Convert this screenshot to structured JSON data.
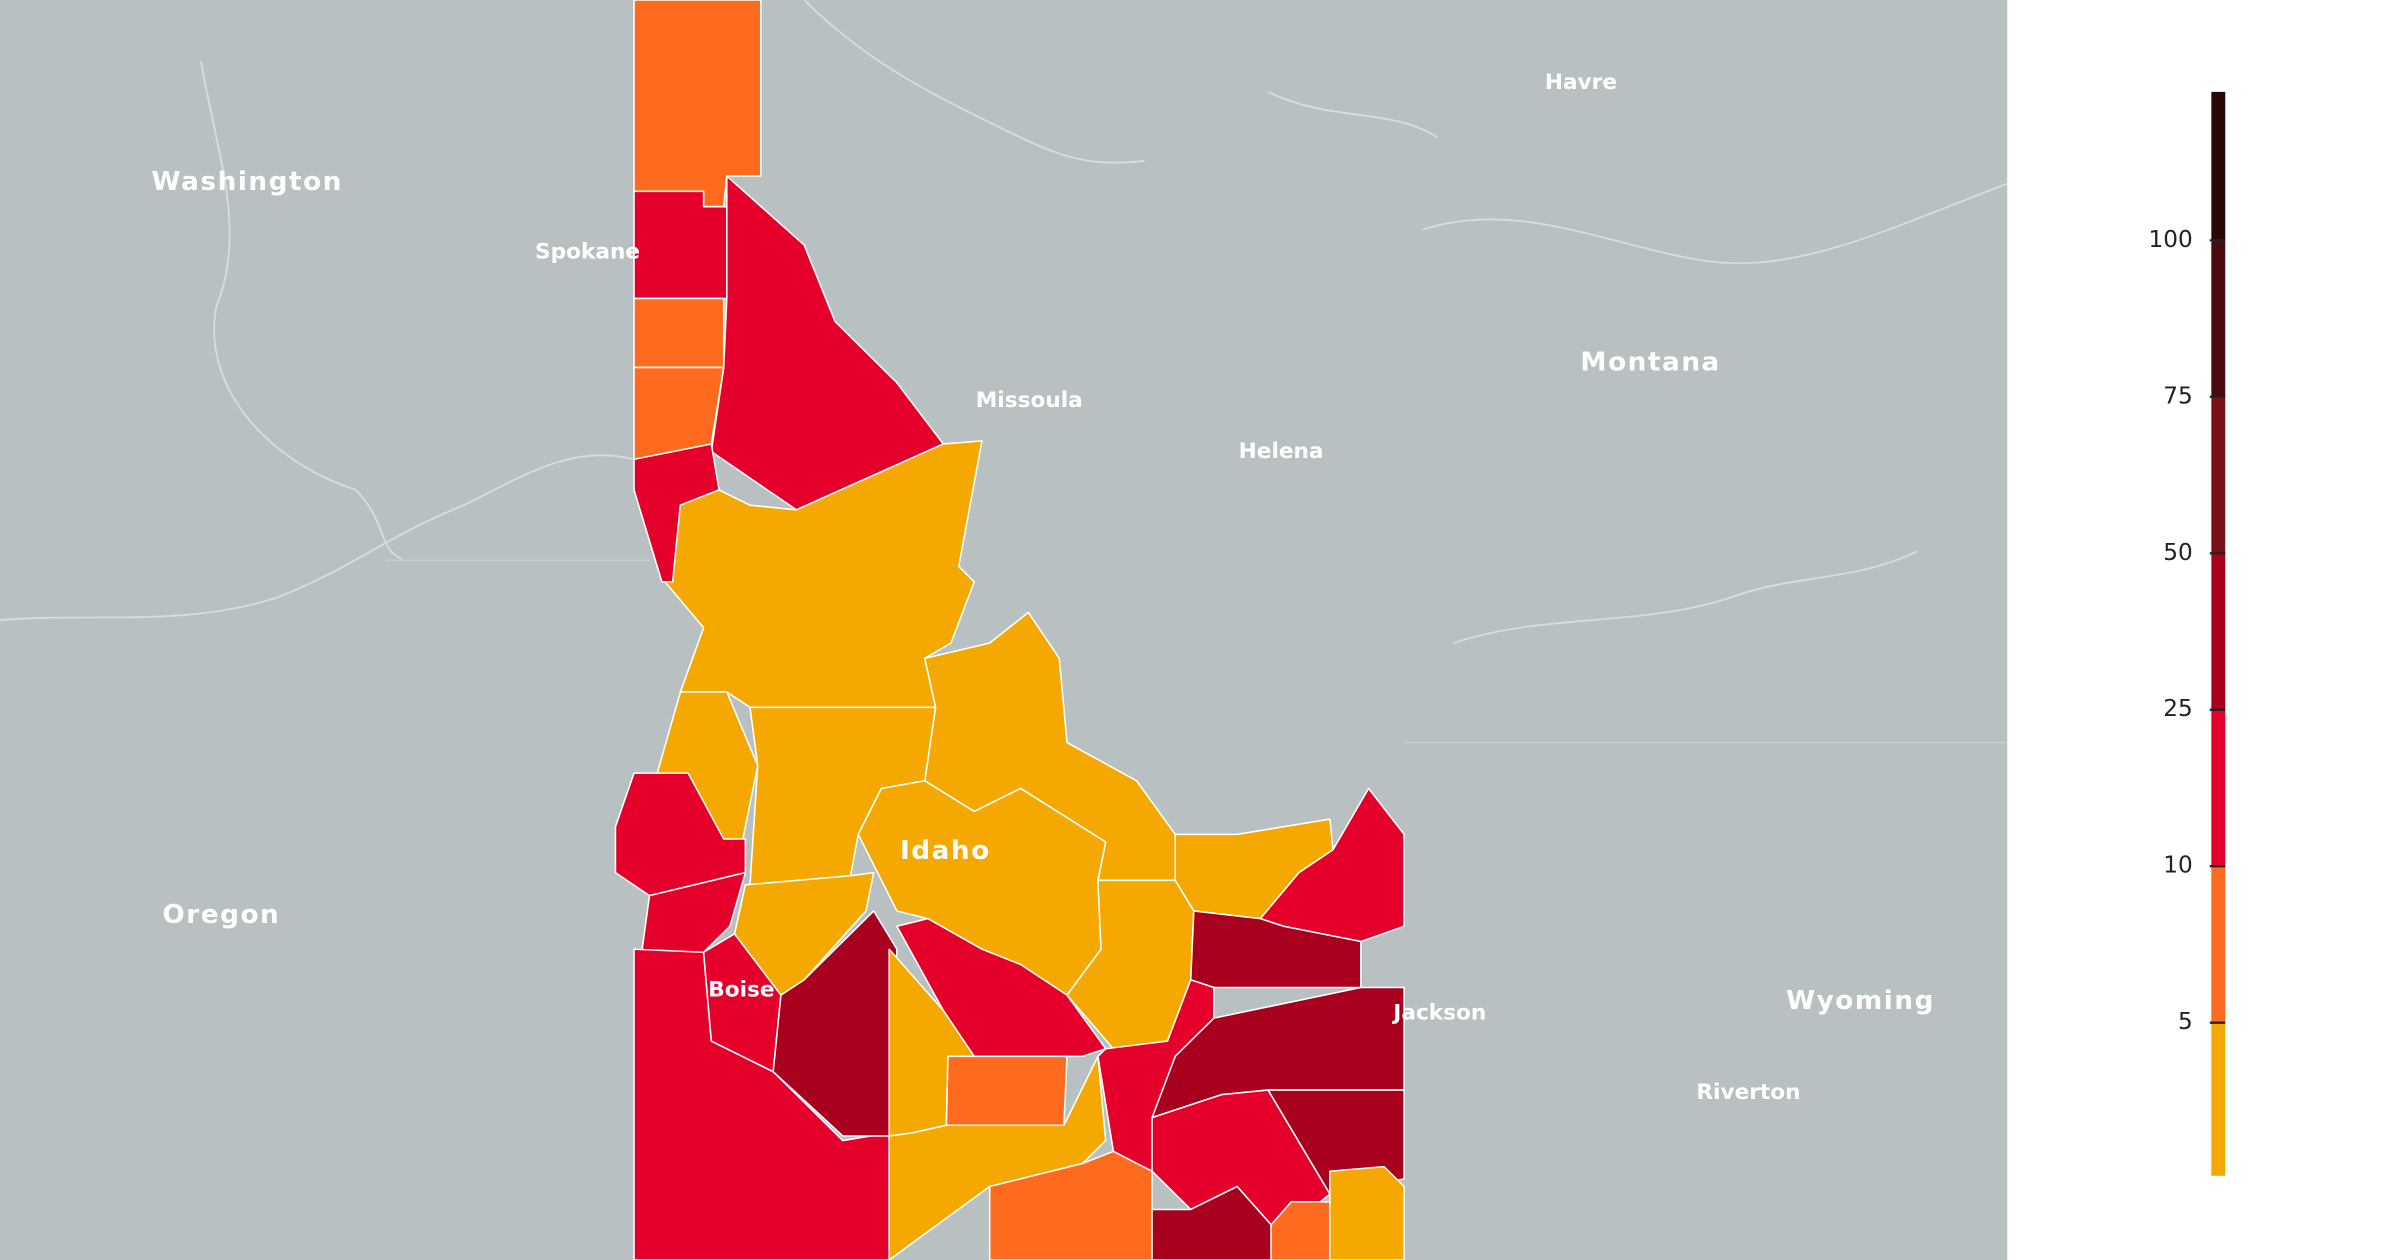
{
  "map": {
    "places": [
      {
        "name": "Washington",
        "kind": "state"
      },
      {
        "name": "Spokane",
        "kind": "city"
      },
      {
        "name": "Havre",
        "kind": "city"
      },
      {
        "name": "Montana",
        "kind": "state"
      },
      {
        "name": "Missoula",
        "kind": "city"
      },
      {
        "name": "Helena",
        "kind": "city"
      },
      {
        "name": "Oregon",
        "kind": "state"
      },
      {
        "name": "Idaho",
        "kind": "state"
      },
      {
        "name": "Boise",
        "kind": "city"
      },
      {
        "name": "Jackson",
        "kind": "city"
      },
      {
        "name": "Wyoming",
        "kind": "state"
      },
      {
        "name": "Riverton",
        "kind": "city"
      }
    ]
  },
  "legend": {
    "ticks": [
      5,
      10,
      25,
      50,
      75,
      100
    ],
    "colors": [
      "#f5a800",
      "#ff6b1e",
      "#e4002b",
      "#a8001e",
      "#7a1018",
      "#4a0a0f",
      "#2a0508"
    ]
  }
}
